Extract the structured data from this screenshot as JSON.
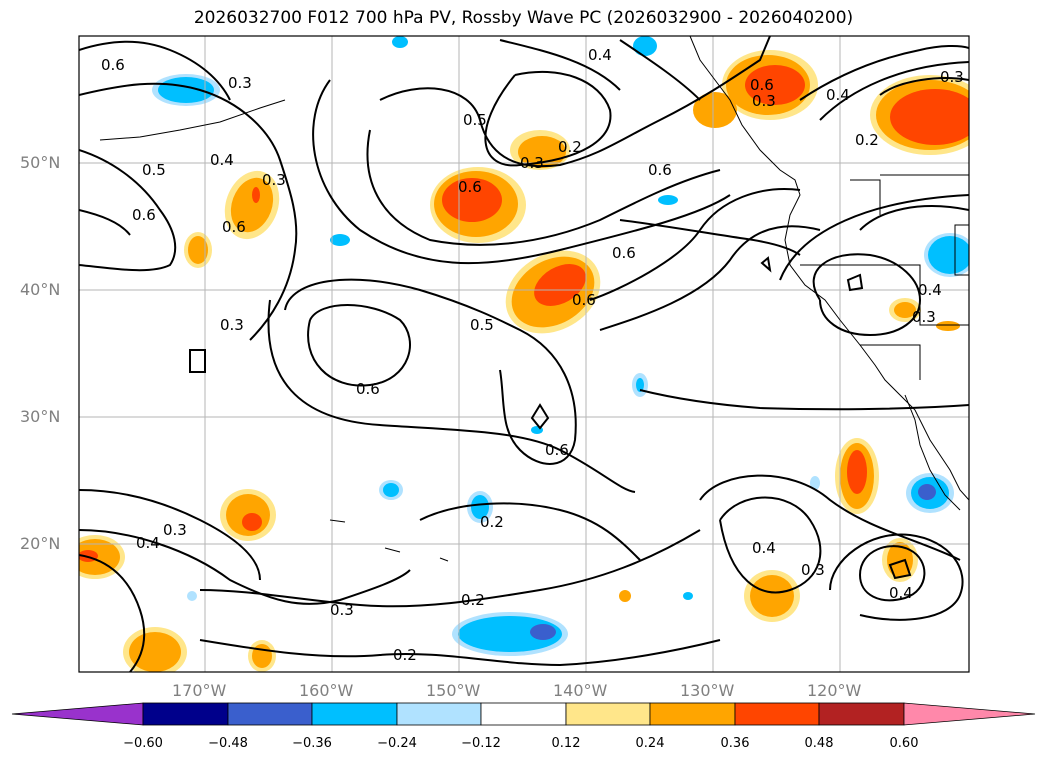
{
  "title": "2026032700 F012 700 hPa PV, Rossby Wave PC (2026032900 - 2026040200)",
  "lat_labels": [
    "50°N",
    "40°N",
    "30°N",
    "20°N"
  ],
  "lon_labels": [
    "170°W",
    "160°W",
    "150°W",
    "140°W",
    "130°W",
    "120°W"
  ],
  "colorbar": {
    "ticks": [
      "−0.60",
      "−0.48",
      "−0.36",
      "−0.24",
      "−0.12",
      "0.12",
      "0.24",
      "0.36",
      "0.48",
      "0.60"
    ],
    "colors": [
      "#9932cc",
      "#00008b",
      "#3a5fcd",
      "#00bfff",
      "#b0e2ff",
      "#ffffff",
      "#ffe68a",
      "#ffa500",
      "#ff4500",
      "#b22222",
      "#ff88aa"
    ]
  },
  "contour_labels": [
    "0.6",
    "0.3",
    "0.5",
    "0.4",
    "0.3",
    "0.6",
    "0.2",
    "0.3",
    "0.6",
    "0.5",
    "0.6",
    "0.6",
    "0.4",
    "0.3",
    "0.3",
    "0.5",
    "0.6",
    "0.6",
    "0.6",
    "0.2",
    "0.4",
    "0.3",
    "0.3",
    "0.2",
    "0.2",
    "0.4",
    "0.3",
    "0.4",
    "0.2",
    "0.3",
    "0.6",
    "0.4",
    "0.3",
    "0.4",
    "0.6"
  ]
}
